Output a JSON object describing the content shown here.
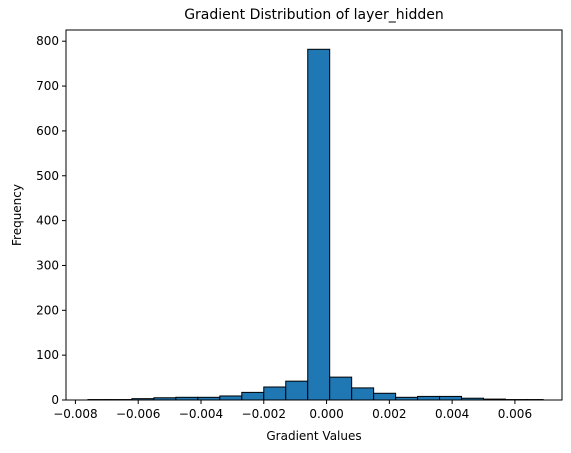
{
  "chart_data": {
    "type": "histogram",
    "title": "Gradient Distribution of layer_hidden",
    "xlabel": "Gradient Values",
    "ylabel": "Frequency",
    "xlim": [
      -0.0083,
      0.0075
    ],
    "ylim": [
      0,
      825
    ],
    "grid": false,
    "bin_edges": [
      -0.0076,
      -0.0069,
      -0.0062,
      -0.0055,
      -0.0048,
      -0.0041,
      -0.0034,
      -0.0027,
      -0.002,
      -0.0013,
      -0.0006,
      0.0001,
      0.0008,
      0.0015,
      0.0022,
      0.0029,
      0.0036,
      0.0043,
      0.005,
      0.0057,
      0.0064,
      0.0069
    ],
    "counts": [
      1,
      1,
      3,
      5,
      6,
      6,
      9,
      17,
      29,
      42,
      782,
      51,
      27,
      15,
      6,
      8,
      8,
      4,
      2,
      1,
      1
    ],
    "bar_color": "#1f77b4",
    "edge_color": "#000000",
    "xticks": [
      -0.008,
      -0.006,
      -0.004,
      -0.002,
      0.0,
      0.002,
      0.004,
      0.006
    ],
    "xtick_labels": [
      "−0.008",
      "−0.006",
      "−0.004",
      "−0.002",
      "0.000",
      "0.002",
      "0.004",
      "0.006"
    ],
    "yticks": [
      0,
      100,
      200,
      300,
      400,
      500,
      600,
      700,
      800
    ],
    "ytick_labels": [
      "0",
      "100",
      "200",
      "300",
      "400",
      "500",
      "600",
      "700",
      "800"
    ]
  }
}
